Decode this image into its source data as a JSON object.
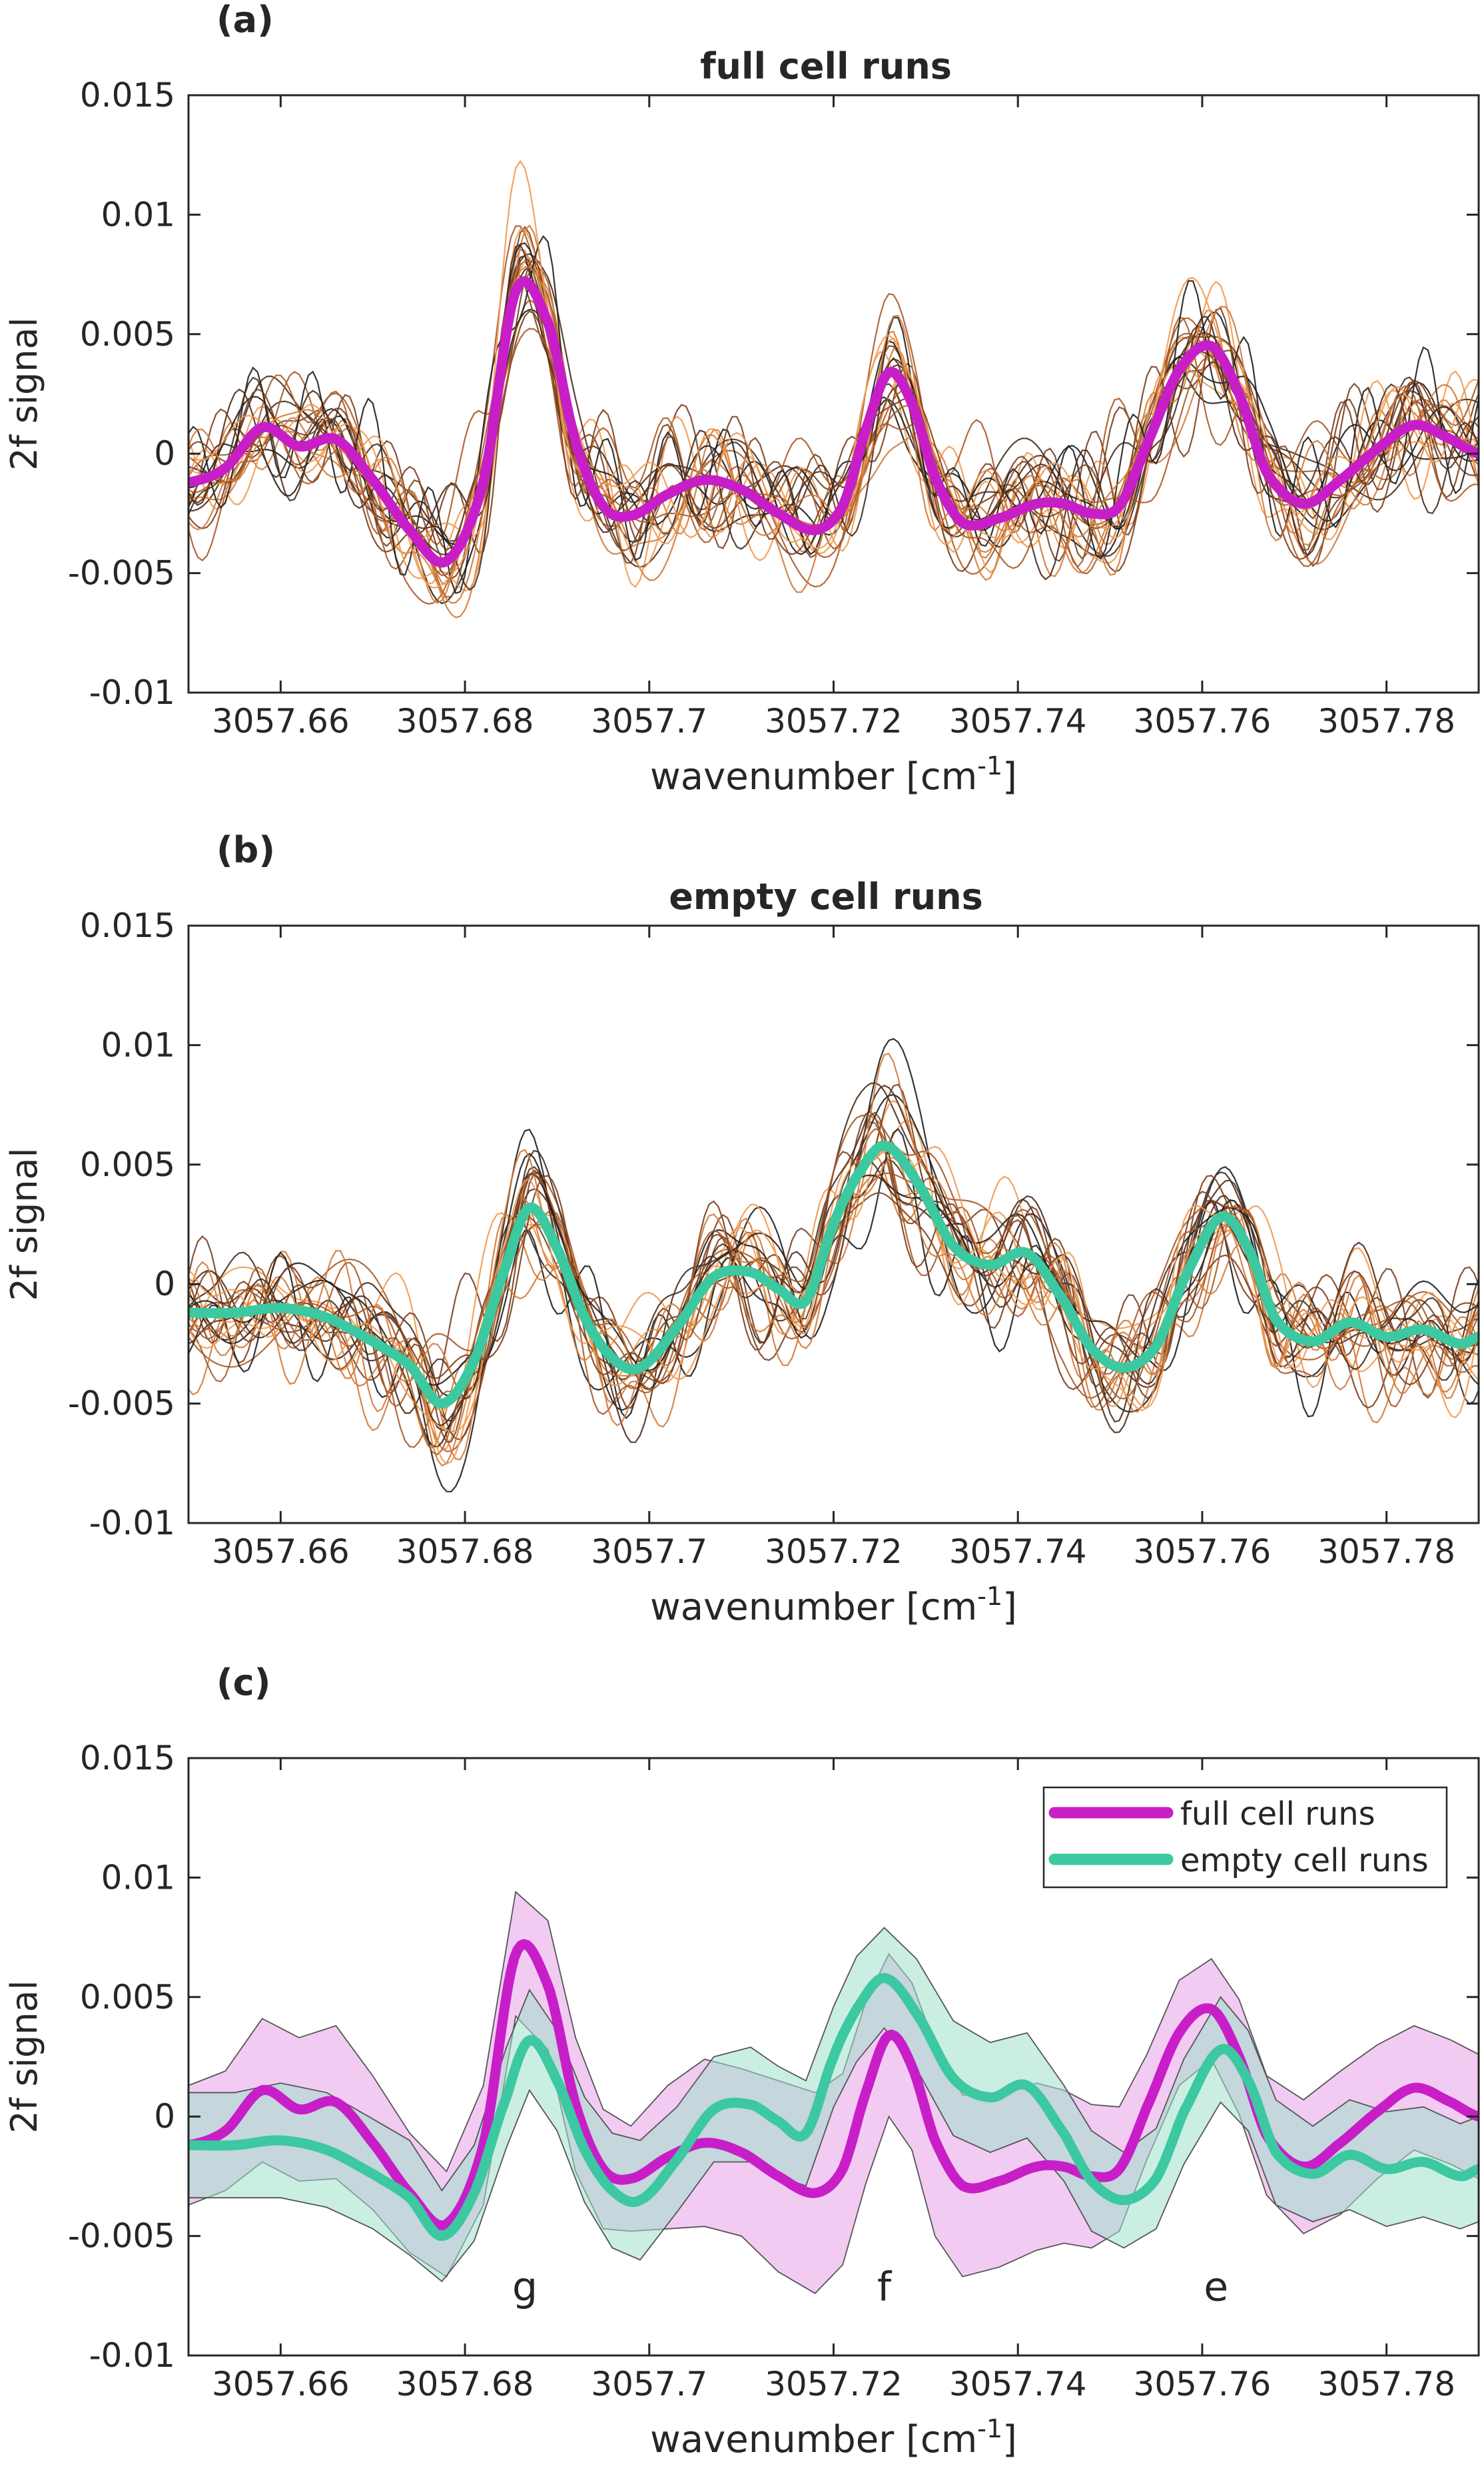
{
  "figure": {
    "panel_labels": [
      "(a)",
      "(b)",
      "(c)"
    ]
  },
  "colors": {
    "full": "#c81ec8",
    "empty": "#3cc8a0",
    "full_band": "#e8a0e8",
    "empty_band": "#a0e0cc",
    "overlap_band": "#a8a8d0",
    "run_palette": [
      "#1e1e1e",
      "#4a2e1e",
      "#7a4020",
      "#a85a28",
      "#d27a38",
      "#f09a50"
    ]
  },
  "chart_data": [
    {
      "type": "line",
      "title": "full cell runs",
      "xlabel": "wavenumber [cm",
      "xlabel_sup": "-1",
      "xlabel_end": "]",
      "ylabel": "2f signal",
      "xlim": [
        3057.65,
        3057.79
      ],
      "ylim": [
        -0.01,
        0.015
      ],
      "xticks": [
        "3057.66",
        "3057.68",
        "3057.7",
        "3057.72",
        "3057.74",
        "3057.76",
        "3057.78"
      ],
      "yticks": [
        "-0.01",
        "-0.005",
        "0",
        "0.005",
        "0.01",
        "0.015"
      ],
      "grid": false,
      "background_runs": 24,
      "series": [
        {
          "key": "full",
          "x": [
            3057.65,
            3057.654,
            3057.658,
            3057.662,
            3057.666,
            3057.67,
            3057.674,
            3057.678,
            3057.682,
            3057.6855,
            3057.689,
            3057.692,
            3057.695,
            3057.698,
            3057.702,
            3057.706,
            3057.71,
            3057.714,
            3057.718,
            3057.721,
            3057.7235,
            3057.726,
            3057.7285,
            3057.731,
            3057.734,
            3057.738,
            3057.742,
            3057.745,
            3057.748,
            3057.751,
            3057.754,
            3057.7575,
            3057.761,
            3057.764,
            3057.767,
            3057.771,
            3057.775,
            3057.779,
            3057.783,
            3057.787,
            3057.79
          ],
          "values": [
            -0.0012,
            -0.0006,
            0.0011,
            0.0003,
            0.0006,
            -0.0011,
            -0.0032,
            -0.0045,
            -0.0012,
            0.0068,
            0.0055,
            0.0005,
            -0.0022,
            -0.0026,
            -0.0017,
            -0.0011,
            -0.0015,
            -0.0025,
            -0.0032,
            -0.0022,
            0.001,
            0.0034,
            0.0021,
            -0.001,
            -0.0029,
            -0.0027,
            -0.0021,
            -0.0021,
            -0.0025,
            -0.0022,
            0.0004,
            0.0035,
            0.0045,
            0.0025,
            -0.0008,
            -0.0021,
            -0.0011,
            0.0002,
            0.0012,
            0.0006,
            0.0
          ]
        }
      ]
    },
    {
      "type": "line",
      "title": "empty cell runs",
      "xlabel": "wavenumber [cm",
      "xlabel_sup": "-1",
      "xlabel_end": "]",
      "ylabel": "2f signal",
      "xlim": [
        3057.65,
        3057.79
      ],
      "ylim": [
        -0.01,
        0.015
      ],
      "xticks": [
        "3057.66",
        "3057.68",
        "3057.7",
        "3057.72",
        "3057.74",
        "3057.76",
        "3057.78"
      ],
      "yticks": [
        "-0.01",
        "-0.005",
        "0",
        "0.005",
        "0.01",
        "0.015"
      ],
      "grid": false,
      "background_runs": 24,
      "series": [
        {
          "key": "empty",
          "x": [
            3057.65,
            3057.655,
            3057.66,
            3057.665,
            3057.67,
            3057.674,
            3057.6775,
            3057.681,
            3057.6845,
            3057.687,
            3057.69,
            3057.693,
            3057.696,
            3057.699,
            3057.703,
            3057.707,
            3057.711,
            3057.714,
            3057.717,
            3057.72,
            3057.7225,
            3057.7255,
            3057.729,
            3057.733,
            3057.737,
            3057.741,
            3057.745,
            3057.748,
            3057.7515,
            3057.755,
            3057.758,
            3057.762,
            3057.765,
            3057.768,
            3057.772,
            3057.776,
            3057.78,
            3057.784,
            3057.788,
            3057.79
          ],
          "values": [
            -0.0012,
            -0.0012,
            -0.001,
            -0.0014,
            -0.0024,
            -0.0034,
            -0.005,
            -0.0032,
            0.0008,
            0.0032,
            0.0015,
            -0.0014,
            -0.0031,
            -0.0035,
            -0.0018,
            0.0003,
            0.0005,
            -0.0002,
            -0.0007,
            0.0025,
            0.0045,
            0.0058,
            0.0043,
            0.0016,
            0.0008,
            0.0013,
            -0.0007,
            -0.0027,
            -0.0035,
            -0.0026,
            0.0002,
            0.0028,
            0.0015,
            -0.0015,
            -0.0024,
            -0.0016,
            -0.0022,
            -0.0019,
            -0.0025,
            -0.0022
          ]
        }
      ]
    },
    {
      "type": "area",
      "title": "",
      "xlabel": "wavenumber [cm",
      "xlabel_sup": "-1",
      "xlabel_end": "]",
      "ylabel": "2f signal",
      "xlim": [
        3057.65,
        3057.79
      ],
      "ylim": [
        -0.01,
        0.015
      ],
      "xticks": [
        "3057.66",
        "3057.68",
        "3057.7",
        "3057.72",
        "3057.74",
        "3057.76",
        "3057.78"
      ],
      "yticks": [
        "-0.01",
        "-0.005",
        "0",
        "0.005",
        "0.01",
        "0.015"
      ],
      "grid": false,
      "legend_position": "top-right",
      "series": [
        {
          "key": "full",
          "name": "full cell runs",
          "band": [
            0.0025,
            0.0025,
            0.003,
            0.003,
            0.0032,
            0.0028,
            0.0025,
            0.0022,
            0.0025,
            0.0026,
            0.0027,
            0.0028,
            0.0025,
            0.0022,
            0.003,
            0.0035,
            0.0035,
            0.004,
            0.0042,
            0.004,
            0.0038,
            0.0034,
            0.0035,
            0.004,
            0.0038,
            0.0036,
            0.0035,
            0.0032,
            0.003,
            0.0026,
            0.0022,
            0.0022,
            0.0021,
            0.0024,
            0.0025,
            0.0028,
            0.003,
            0.0028,
            0.0026,
            0.0026,
            0.0026
          ]
        },
        {
          "key": "empty",
          "name": "empty cell runs",
          "band": [
            0.0022,
            0.0022,
            0.0024,
            0.0024,
            0.0023,
            0.0024,
            0.0019,
            0.002,
            0.0021,
            0.0021,
            0.0021,
            0.0022,
            0.0024,
            0.0025,
            0.0022,
            0.0022,
            0.0024,
            0.0023,
            0.0022,
            0.0021,
            0.0022,
            0.0021,
            0.0023,
            0.0024,
            0.0023,
            0.0022,
            0.002,
            0.0021,
            0.002,
            0.0021,
            0.0022,
            0.0022,
            0.0021,
            0.0022,
            0.002,
            0.0023,
            0.0024,
            0.0023,
            0.0022,
            0.0022
          ]
        }
      ],
      "annotations": [
        {
          "text": "g",
          "x": 3057.6865,
          "y": -0.0077
        },
        {
          "text": "f",
          "x": 3057.7255,
          "y": -0.0077
        },
        {
          "text": "e",
          "x": 3057.7615,
          "y": -0.0077
        }
      ]
    }
  ]
}
